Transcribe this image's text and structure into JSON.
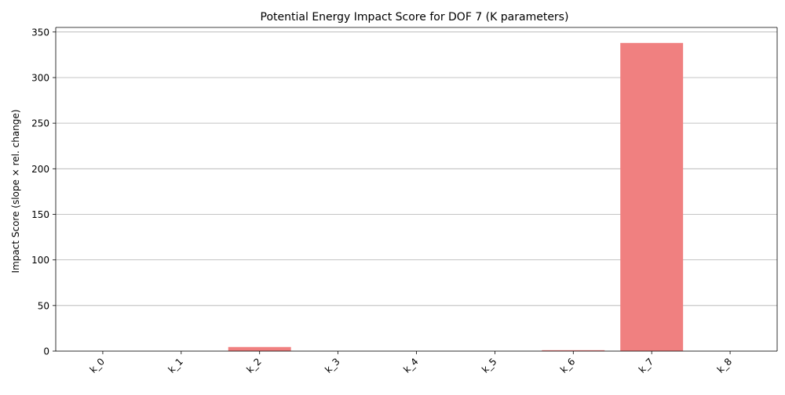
{
  "chart_data": {
    "type": "bar",
    "title": "Potential Energy Impact Score for DOF 7 (K parameters)",
    "xlabel": "",
    "ylabel": "Impact Score (slope × rel. change)",
    "categories": [
      "k_0",
      "k_1",
      "k_2",
      "k_3",
      "k_4",
      "k_5",
      "k_6",
      "k_7",
      "k_8"
    ],
    "values": [
      0,
      0,
      4.5,
      0,
      0,
      0,
      1.0,
      338,
      0
    ],
    "ylim": [
      0,
      355
    ],
    "yticks": [
      "0",
      "50",
      "100",
      "150",
      "200",
      "250",
      "300",
      "350"
    ],
    "grid": "y",
    "bar_color": "#f08080",
    "xtick_rotation": "45"
  }
}
